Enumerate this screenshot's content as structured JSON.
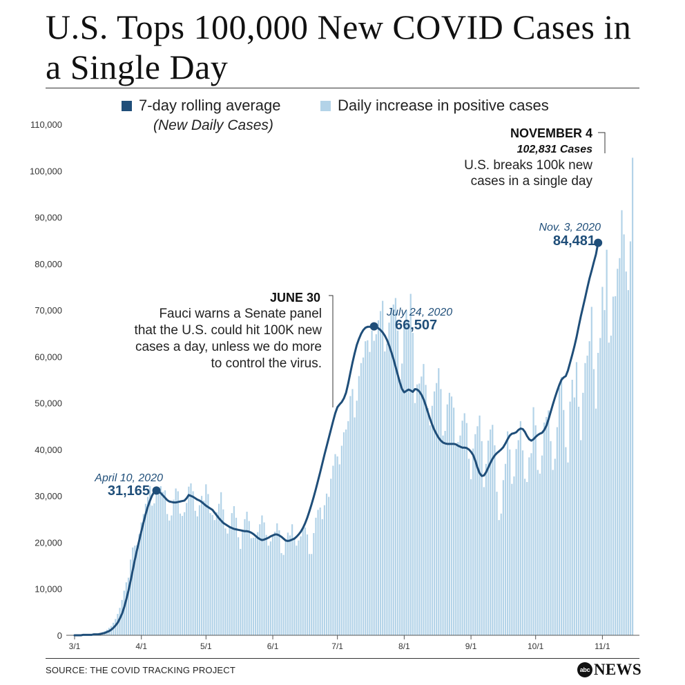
{
  "title": "U.S. Tops 100,000 New COVID Cases in a Single Day",
  "legend": {
    "avg_label": "7-day rolling average",
    "avg_sublabel": "(New Daily Cases)",
    "daily_label": "Daily increase in positive cases",
    "avg_color": "#1f4e79",
    "daily_color": "#b3d3e8"
  },
  "source": "SOURCE: THE COVID TRACKING PROJECT",
  "logo": {
    "mark": "abc",
    "text": "NEWS"
  },
  "annotations": {
    "april": {
      "date": "April 10, 2020",
      "value": "31,165"
    },
    "july": {
      "date": "July 24, 2020",
      "value": "66,507"
    },
    "nov3": {
      "date": "Nov. 3, 2020",
      "value": "84,481"
    },
    "june30": {
      "heading": "JUNE 30",
      "lines": [
        "Fauci warns a Senate panel",
        "that the U.S. could hit 100K new",
        "cases a day, unless we do more",
        "to control the virus."
      ]
    },
    "nov4": {
      "heading": "NOVEMBER 4",
      "subheading": "102,831 Cases",
      "lines": [
        "U.S. breaks 100k new",
        "cases in a single day"
      ]
    }
  },
  "chart_data": {
    "type": "bar",
    "title": "U.S. Tops 100,000 New COVID Cases in a Single Day",
    "xlabel": "",
    "ylabel": "",
    "ylim": [
      0,
      110000
    ],
    "x_ticks": [
      {
        "day": 0,
        "label": "3/1"
      },
      {
        "day": 31,
        "label": "4/1"
      },
      {
        "day": 61,
        "label": "5/1"
      },
      {
        "day": 92,
        "label": "6/1"
      },
      {
        "day": 122,
        "label": "7/1"
      },
      {
        "day": 153,
        "label": "8/1"
      },
      {
        "day": 184,
        "label": "9/1"
      },
      {
        "day": 214,
        "label": "10/1"
      },
      {
        "day": 245,
        "label": "11/1"
      }
    ],
    "y_ticks": [
      0,
      10000,
      20000,
      30000,
      40000,
      50000,
      60000,
      70000,
      80000,
      90000,
      100000,
      110000
    ],
    "start_date": "3/1",
    "series": [
      {
        "name": "Daily increase in positive cases",
        "type": "bar",
        "values": [
          0,
          0,
          0,
          100,
          100,
          100,
          100,
          200,
          200,
          300,
          300,
          400,
          500,
          700,
          900,
          1200,
          1600,
          2000,
          2700,
          3500,
          4600,
          5900,
          7600,
          9600,
          11400,
          12400,
          16300,
          18900,
          19300,
          19400,
          21800,
          24300,
          26100,
          28300,
          29800,
          32100,
          27900,
          28400,
          31600,
          31800,
          32100,
          30900,
          31200,
          26100,
          24700,
          25800,
          29200,
          31600,
          31000,
          26200,
          25700,
          26500,
          28500,
          32000,
          32700,
          31000,
          26800,
          25600,
          28000,
          30000,
          29000,
          32500,
          30400,
          26300,
          25900,
          24800,
          26500,
          28300,
          30800,
          27100,
          23000,
          21900,
          23300,
          26300,
          27800,
          25300,
          21100,
          18600,
          22400,
          25000,
          26600,
          24600,
          20900,
          21000,
          21000,
          22200,
          23900,
          25800,
          24300,
          21600,
          19300,
          20200,
          21500,
          22300,
          24100,
          22600,
          17700,
          17300,
          20200,
          22100,
          21500,
          23900,
          21100,
          19300,
          20400,
          21300,
          22900,
          23200,
          21700,
          17500,
          17500,
          22000,
          25300,
          27000,
          27500,
          25000,
          28000,
          30500,
          29800,
          33700,
          36500,
          39000,
          38500,
          36800,
          40800,
          43700,
          44300,
          46100,
          51500,
          53000,
          46900,
          50500,
          55800,
          58600,
          59800,
          63300,
          63500,
          61000,
          65600,
          63400,
          64800,
          67800,
          69800,
          72000,
          61100,
          62800,
          67300,
          70500,
          71200,
          72600,
          65600,
          55100,
          58500,
          66300,
          70000,
          67700,
          73500,
          65100,
          50000,
          54000,
          54200,
          55700,
          58400,
          53900,
          48900,
          45200,
          49400,
          52500,
          54300,
          57500,
          53000,
          43000,
          44000,
          49700,
          52200,
          51400,
          49000,
          40800,
          41600,
          43000,
          46200,
          47800,
          45700,
          38000,
          33600,
          40200,
          43300,
          45000,
          47300,
          41800,
          31900,
          36900,
          41900,
          44300,
          45300,
          40900,
          30900,
          24800,
          26200,
          33400,
          36900,
          43900,
          40000,
          32600,
          34200,
          40100,
          42000,
          46100,
          39800,
          33700,
          33000,
          38300,
          39200,
          49100,
          45200,
          35600,
          34800,
          38700,
          45800,
          47000,
          48400,
          41800,
          35600,
          38000,
          44800,
          53300,
          55600,
          48500,
          40500,
          37200,
          50300,
          55000,
          51200,
          58800,
          49200,
          42000,
          52200,
          58600,
          60200,
          63300,
          70700,
          57300,
          48800,
          60800,
          64000,
          75000,
          70000,
          83000,
          63000,
          64500,
          72900,
          73000,
          78900,
          81200,
          91500,
          86300,
          78300,
          74300,
          84800,
          102800
        ]
      },
      {
        "name": "7-day rolling average",
        "type": "line",
        "values": [
          0,
          0,
          0,
          0,
          100,
          100,
          100,
          100,
          100,
          200,
          200,
          200,
          300,
          400,
          500,
          700,
          900,
          1200,
          1600,
          2100,
          2700,
          3600,
          4600,
          6000,
          7700,
          9600,
          11700,
          14000,
          16300,
          18400,
          20400,
          22400,
          24300,
          26100,
          27700,
          29000,
          30100,
          30900,
          31165,
          31000,
          30600,
          30100,
          29600,
          29100,
          28800,
          28700,
          28600,
          28600,
          28700,
          28800,
          28900,
          29000,
          29500,
          30200,
          30000,
          29800,
          29500,
          29200,
          29000,
          28700,
          28300,
          27900,
          27600,
          27300,
          27000,
          26400,
          25800,
          25200,
          24700,
          24200,
          23900,
          23600,
          23300,
          23100,
          22900,
          22800,
          22700,
          22600,
          22500,
          22400,
          22400,
          22300,
          22100,
          21800,
          21400,
          21000,
          20700,
          20500,
          20600,
          20800,
          21000,
          21300,
          21500,
          21700,
          21700,
          21500,
          21200,
          20800,
          20400,
          20300,
          20400,
          20600,
          20800,
          21200,
          21700,
          22300,
          23100,
          24100,
          25300,
          26700,
          28200,
          29800,
          31500,
          33300,
          35100,
          37000,
          38900,
          40700,
          42500,
          44300,
          46100,
          47800,
          49100,
          49700,
          50200,
          51000,
          52200,
          54200,
          56500,
          58700,
          60700,
          62500,
          63800,
          64900,
          65700,
          66200,
          66400,
          66400,
          66400,
          66507,
          66400,
          66100,
          65700,
          65200,
          64500,
          63600,
          62400,
          61000,
          59500,
          57800,
          56100,
          54400,
          53000,
          52300,
          52600,
          52900,
          52700,
          52400,
          53000,
          52900,
          52500,
          51800,
          50800,
          49500,
          48000,
          46600,
          45300,
          44200,
          43300,
          42500,
          41900,
          41500,
          41300,
          41200,
          41200,
          41200,
          41200,
          41100,
          40800,
          40600,
          40400,
          40400,
          40300,
          40000,
          39500,
          38800,
          37600,
          36100,
          34900,
          34300,
          34400,
          35100,
          36100,
          37100,
          38000,
          38700,
          39200,
          39600,
          40000,
          40500,
          41300,
          42200,
          43000,
          43400,
          43500,
          43700,
          44200,
          44500,
          44400,
          43800,
          42900,
          42200,
          41900,
          42200,
          42700,
          43100,
          43400,
          43600,
          44200,
          45100,
          46500,
          48100,
          49700,
          51200,
          52600,
          53900,
          55000,
          55500,
          55800,
          57000,
          58700,
          60400,
          62200,
          64200,
          66500,
          68700,
          70700,
          72700,
          74800,
          76800,
          78500,
          80300,
          82000,
          84481
        ]
      }
    ]
  }
}
